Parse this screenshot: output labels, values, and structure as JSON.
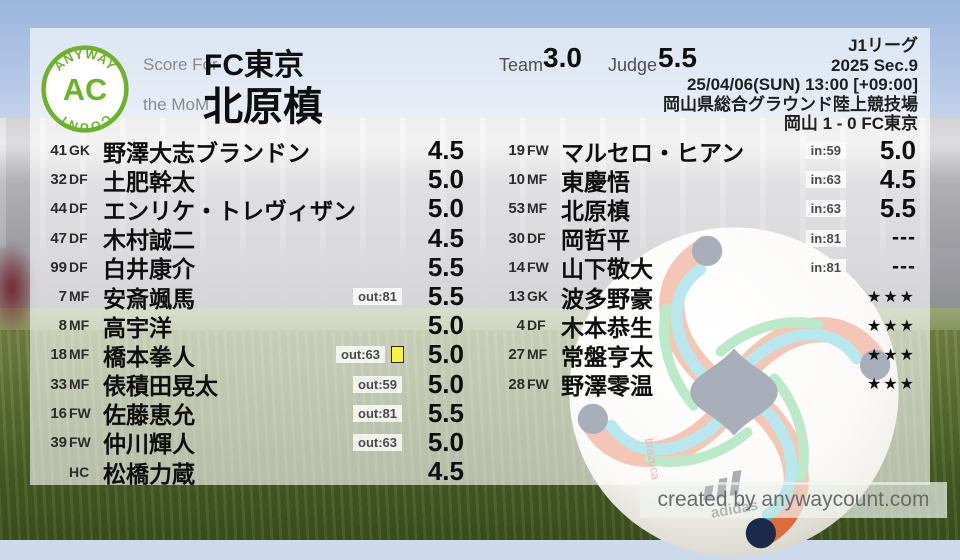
{
  "header": {
    "logo": {
      "top": "ANYWAY",
      "center": "AC",
      "bottom": "COUNT"
    },
    "score_for_label": "Score For",
    "team_name": "FC東京",
    "mom_label": "the MoM",
    "mom_name": "北原槙",
    "team_label": "Team",
    "team_value": "3.0",
    "judge_label": "Judge",
    "judge_value": "5.5",
    "match": {
      "league": "J1リーグ",
      "section": "2025 Sec.9",
      "datetime": "25/04/06(SUN) 13:00 [+09:00]",
      "venue": "岡山県総合グラウンド陸上競技場",
      "result": "岡山 1 - 0 FC東京"
    }
  },
  "starters": [
    {
      "num": "41",
      "pos": "GK",
      "name": "野澤大志ブランドン",
      "badge": "",
      "card": false,
      "rating": "4.5"
    },
    {
      "num": "32",
      "pos": "DF",
      "name": "土肥幹太",
      "badge": "",
      "card": false,
      "rating": "5.0"
    },
    {
      "num": "44",
      "pos": "DF",
      "name": "エンリケ・トレヴィザン",
      "badge": "",
      "card": false,
      "rating": "5.0"
    },
    {
      "num": "47",
      "pos": "DF",
      "name": "木村誠二",
      "badge": "",
      "card": false,
      "rating": "4.5"
    },
    {
      "num": "99",
      "pos": "DF",
      "name": "白井康介",
      "badge": "",
      "card": false,
      "rating": "5.5"
    },
    {
      "num": "7",
      "pos": "MF",
      "name": "安斎颯馬",
      "badge": "out:81",
      "card": false,
      "rating": "5.5"
    },
    {
      "num": "8",
      "pos": "MF",
      "name": "高宇洋",
      "badge": "",
      "card": false,
      "rating": "5.0"
    },
    {
      "num": "18",
      "pos": "MF",
      "name": "橋本拳人",
      "badge": "out:63",
      "card": true,
      "rating": "5.0"
    },
    {
      "num": "33",
      "pos": "MF",
      "name": "俵積田晃太",
      "badge": "out:59",
      "card": false,
      "rating": "5.0"
    },
    {
      "num": "16",
      "pos": "FW",
      "name": "佐藤恵允",
      "badge": "out:81",
      "card": false,
      "rating": "5.5"
    },
    {
      "num": "39",
      "pos": "FW",
      "name": "仲川輝人",
      "badge": "out:63",
      "card": false,
      "rating": "5.0"
    },
    {
      "num": "",
      "pos": "HC",
      "name": "松橋力蔵",
      "badge": "",
      "card": false,
      "rating": "4.5"
    }
  ],
  "subs": [
    {
      "num": "19",
      "pos": "FW",
      "name": "マルセロ・ヒアン",
      "badge": "in:59",
      "card": false,
      "rating": "5.0"
    },
    {
      "num": "10",
      "pos": "MF",
      "name": "東慶悟",
      "badge": "in:63",
      "card": false,
      "rating": "4.5"
    },
    {
      "num": "53",
      "pos": "MF",
      "name": "北原槙",
      "badge": "in:63",
      "card": false,
      "rating": "5.5"
    },
    {
      "num": "30",
      "pos": "DF",
      "name": "岡哲平",
      "badge": "in:81",
      "card": false,
      "rating": "---"
    },
    {
      "num": "14",
      "pos": "FW",
      "name": "山下敬大",
      "badge": "in:81",
      "card": false,
      "rating": "---"
    },
    {
      "num": "13",
      "pos": "GK",
      "name": "波多野豪",
      "badge": "",
      "card": false,
      "rating": "★★★"
    },
    {
      "num": "4",
      "pos": "DF",
      "name": "木本恭生",
      "badge": "",
      "card": false,
      "rating": "★★★"
    },
    {
      "num": "27",
      "pos": "MF",
      "name": "常盤亨太",
      "badge": "",
      "card": false,
      "rating": "★★★"
    },
    {
      "num": "28",
      "pos": "FW",
      "name": "野澤零温",
      "badge": "",
      "card": false,
      "rating": "★★★"
    }
  ],
  "footer": {
    "credit": "created by anywaycount.com"
  },
  "colors": {
    "accent_green": "#6cb32b",
    "yellow_card": "#f8f33c",
    "ball_orange": "#df6a3e",
    "ball_teal": "#45c3d2",
    "ball_green": "#4fc472",
    "ball_navy": "#1b2a4a"
  }
}
